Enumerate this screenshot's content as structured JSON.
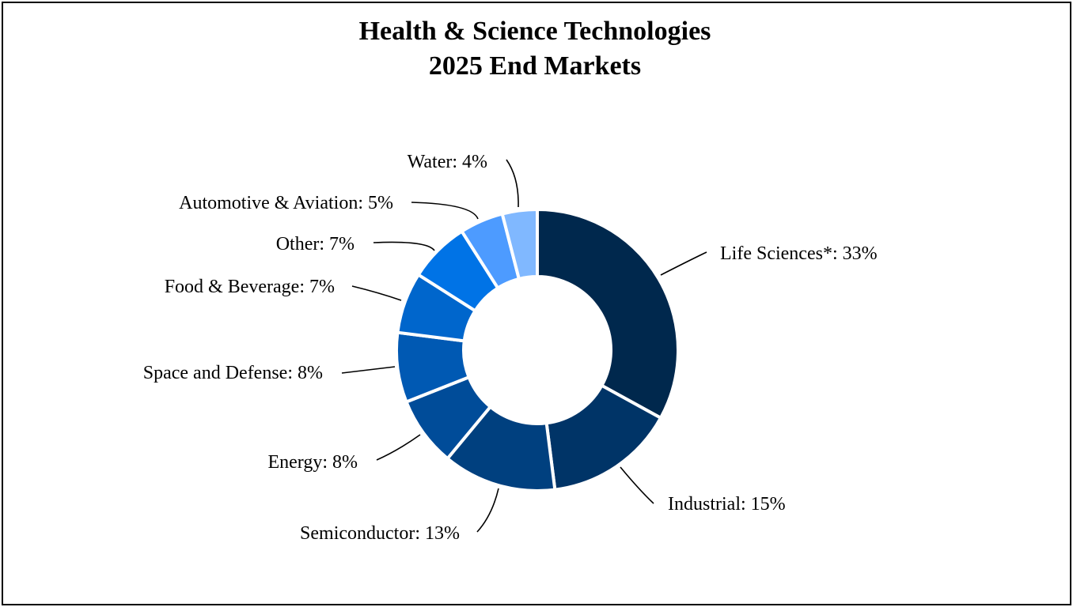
{
  "chart_data": {
    "type": "pie",
    "variant": "donut",
    "title": "Health & Science Technologies\n2025 End Markets",
    "title_lines": [
      "Health & Science Technologies",
      "2025 End Markets"
    ],
    "slices": [
      {
        "category": "Life Sciences*",
        "value": 33,
        "label": "Life Sciences*: 33%",
        "color": "#00284D"
      },
      {
        "category": "Industrial",
        "value": 15,
        "label": "Industrial: 15%",
        "color": "#003467"
      },
      {
        "category": "Semiconductor",
        "value": 13,
        "label": "Semiconductor: 13%",
        "color": "#00407F"
      },
      {
        "category": "Energy",
        "value": 8,
        "label": "Energy: 8%",
        "color": "#004C99"
      },
      {
        "category": "Space and Defense",
        "value": 8,
        "label": "Space and Defense: 8%",
        "color": "#0059B3"
      },
      {
        "category": "Food & Beverage",
        "value": 7,
        "label": "Food & Beverage: 7%",
        "color": "#0066CC"
      },
      {
        "category": "Other",
        "value": 7,
        "label": "Other: 7%",
        "color": "#0073E6"
      },
      {
        "category": "Automotive & Aviation",
        "value": 5,
        "label": "Automotive & Aviation: 5%",
        "color": "#4D9BFF"
      },
      {
        "category": "Water",
        "value": 4,
        "label": "Water: 4%",
        "color": "#80B8FF"
      }
    ],
    "legend": "none",
    "labels": "outside with leader lines"
  }
}
